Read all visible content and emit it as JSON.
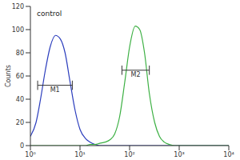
{
  "chart_data": {
    "type": "line",
    "y_label": "Counts",
    "annotations": [
      "control"
    ],
    "log": "x",
    "grid": false,
    "xlim": [
      1,
      10000
    ],
    "xticks": [
      {
        "value": 1,
        "label": "10⁰"
      },
      {
        "value": 10,
        "label": "10¹"
      },
      {
        "value": 100,
        "label": "10²"
      },
      {
        "value": 1000,
        "label": "10³"
      },
      {
        "value": 10000,
        "label": "10⁴"
      }
    ],
    "ylim": [
      0,
      120
    ],
    "yticks": [
      0,
      20,
      40,
      60,
      80,
      100,
      120
    ],
    "x": [
      1,
      1.3,
      1.6,
      2,
      2.5,
      3.2,
      4,
      5,
      6.3,
      8,
      10,
      13,
      16,
      20,
      25,
      32,
      40,
      50,
      63,
      80,
      100,
      130,
      160,
      200,
      250,
      320,
      400,
      500,
      630,
      800,
      1000,
      2000,
      5000,
      10000
    ],
    "series": [
      {
        "color": "#2b3dbd",
        "values": [
          8,
          20,
          40,
          65,
          85,
          95,
          92,
          80,
          55,
          30,
          14,
          6,
          3,
          1,
          0,
          0,
          0,
          0,
          0,
          0,
          0,
          0,
          0,
          0,
          0,
          0,
          0,
          0,
          0,
          0,
          0,
          0,
          0,
          0
        ]
      },
      {
        "color": "#3cb043",
        "values": [
          0,
          0,
          0,
          0,
          0,
          0,
          0,
          0,
          0,
          0,
          0,
          0,
          1,
          1,
          2,
          3,
          5,
          10,
          25,
          55,
          85,
          103,
          100,
          80,
          45,
          20,
          8,
          3,
          1,
          0,
          0,
          0,
          0,
          0
        ]
      }
    ],
    "gates": [
      {
        "label": "M1",
        "range": [
          1.4,
          7
        ],
        "y": 52
      },
      {
        "label": "M2",
        "range": [
          70,
          250
        ],
        "y": 65
      }
    ]
  }
}
